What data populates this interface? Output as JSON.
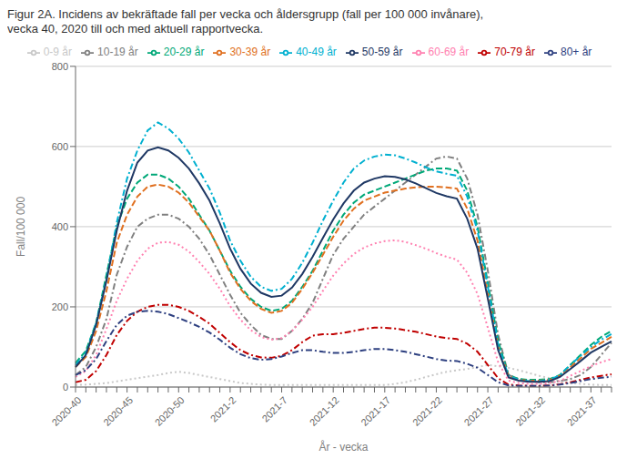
{
  "chart_data": {
    "type": "line",
    "title": "Figur 2A. Incidens av bekräftade fall per vecka och åldersgrupp (fall per 100 000 invånare),",
    "subtitle": "vecka 40, 2020 till och med aktuell rapportvecka.",
    "xlabel": "År - vecka",
    "ylabel": "Fall/100 000",
    "categories": [
      "2020-40",
      null,
      null,
      null,
      null,
      "2020-45",
      null,
      null,
      null,
      null,
      "2020-50",
      null,
      null,
      null,
      null,
      "2021-2",
      null,
      null,
      null,
      null,
      "2021-7",
      null,
      null,
      null,
      null,
      "2021-12",
      null,
      null,
      null,
      null,
      "2021-17",
      null,
      null,
      null,
      null,
      "2021-22",
      null,
      null,
      null,
      null,
      "2021-27",
      null,
      null,
      null,
      null,
      "2021-32",
      null,
      null,
      null,
      null,
      "2021-37",
      null,
      null
    ],
    "series": [
      {
        "name": "0-9 år",
        "color": "#c8c8c8",
        "line_style": "dotted",
        "values": [
          5,
          6,
          8,
          10,
          14,
          18,
          22,
          26,
          30,
          35,
          38,
          35,
          30,
          25,
          20,
          15,
          10,
          8,
          6,
          5,
          5,
          5,
          5,
          5,
          5,
          5,
          5,
          5,
          5,
          5,
          5,
          8,
          12,
          18,
          25,
          32,
          38,
          42,
          45,
          50,
          55,
          52,
          48,
          42,
          35,
          28,
          22,
          15,
          10,
          8,
          6,
          5,
          5
        ]
      },
      {
        "name": "10-19 år",
        "color": "#808080",
        "line_style": "dashdot",
        "values": [
          30,
          50,
          100,
          170,
          280,
          350,
          400,
          420,
          430,
          430,
          420,
          400,
          370,
          330,
          280,
          230,
          185,
          155,
          130,
          120,
          120,
          140,
          170,
          210,
          270,
          330,
          370,
          400,
          430,
          450,
          470,
          490,
          510,
          530,
          550,
          570,
          575,
          570,
          520,
          430,
          290,
          130,
          30,
          20,
          15,
          12,
          12,
          15,
          20,
          30,
          50,
          80,
          110
        ]
      },
      {
        "name": "20-29 år",
        "color": "#00a878",
        "line_style": "dashed",
        "values": [
          60,
          90,
          160,
          280,
          400,
          470,
          510,
          530,
          530,
          520,
          500,
          470,
          430,
          390,
          340,
          290,
          250,
          220,
          200,
          190,
          195,
          215,
          250,
          290,
          340,
          390,
          430,
          460,
          480,
          490,
          500,
          510,
          520,
          530,
          540,
          545,
          545,
          540,
          490,
          400,
          260,
          115,
          30,
          20,
          18,
          18,
          20,
          30,
          55,
          80,
          105,
          125,
          140
        ]
      },
      {
        "name": "30-39 år",
        "color": "#e07020",
        "line_style": "dashed",
        "values": [
          50,
          75,
          140,
          240,
          360,
          430,
          475,
          500,
          505,
          500,
          485,
          460,
          425,
          390,
          340,
          285,
          245,
          215,
          195,
          185,
          190,
          210,
          245,
          285,
          330,
          375,
          415,
          445,
          465,
          475,
          485,
          490,
          495,
          498,
          500,
          500,
          498,
          495,
          445,
          365,
          235,
          100,
          28,
          18,
          16,
          16,
          18,
          28,
          50,
          72,
          95,
          110,
          125
        ]
      },
      {
        "name": "40-49 år",
        "color": "#00b0d0",
        "line_style": "dashdot",
        "values": [
          55,
          85,
          160,
          270,
          410,
          520,
          590,
          640,
          660,
          645,
          620,
          585,
          540,
          495,
          435,
          365,
          315,
          275,
          250,
          240,
          245,
          270,
          310,
          360,
          415,
          465,
          510,
          545,
          565,
          575,
          580,
          578,
          570,
          560,
          548,
          538,
          532,
          527,
          475,
          390,
          250,
          105,
          28,
          18,
          15,
          15,
          18,
          30,
          55,
          78,
          100,
          118,
          132
        ]
      },
      {
        "name": "50-59 år",
        "color": "#1f3864",
        "line_style": "solid",
        "values": [
          50,
          80,
          155,
          265,
          390,
          490,
          560,
          590,
          598,
          590,
          572,
          545,
          508,
          465,
          408,
          345,
          295,
          258,
          235,
          225,
          228,
          248,
          282,
          325,
          372,
          418,
          458,
          490,
          510,
          520,
          526,
          524,
          518,
          508,
          496,
          484,
          476,
          470,
          420,
          345,
          220,
          92,
          24,
          16,
          13,
          13,
          15,
          25,
          45,
          65,
          86,
          100,
          114
        ]
      },
      {
        "name": "60-69 år",
        "color": "#ff80b0",
        "line_style": "dotted",
        "values": [
          25,
          40,
          80,
          145,
          215,
          270,
          315,
          345,
          360,
          362,
          355,
          338,
          312,
          282,
          245,
          202,
          168,
          142,
          125,
          118,
          122,
          140,
          168,
          200,
          240,
          278,
          308,
          332,
          348,
          358,
          364,
          366,
          362,
          354,
          345,
          334,
          325,
          318,
          285,
          232,
          148,
          62,
          16,
          10,
          8,
          8,
          10,
          15,
          28,
          40,
          52,
          62,
          70
        ]
      },
      {
        "name": "70-79 år",
        "color": "#c00000",
        "line_style": "dashdot",
        "values": [
          12,
          18,
          40,
          80,
          130,
          165,
          188,
          200,
          205,
          205,
          200,
          190,
          175,
          158,
          135,
          112,
          92,
          80,
          74,
          73,
          78,
          92,
          112,
          128,
          132,
          132,
          135,
          140,
          145,
          148,
          148,
          146,
          142,
          138,
          132,
          126,
          122,
          120,
          108,
          88,
          55,
          22,
          6,
          4,
          3,
          3,
          4,
          7,
          12,
          18,
          24,
          28,
          32
        ]
      },
      {
        "name": "80+ år",
        "color": "#2e4080",
        "line_style": "dashdot",
        "values": [
          30,
          42,
          70,
          115,
          155,
          178,
          188,
          190,
          188,
          182,
          172,
          162,
          150,
          136,
          118,
          98,
          82,
          72,
          68,
          70,
          76,
          85,
          92,
          92,
          88,
          85,
          85,
          88,
          92,
          95,
          95,
          92,
          88,
          82,
          76,
          70,
          66,
          65,
          58,
          48,
          30,
          12,
          4,
          3,
          3,
          3,
          4,
          6,
          10,
          15,
          20,
          23,
          26
        ]
      }
    ],
    "ylim": [
      0,
      800
    ],
    "yticks": [
      0,
      200,
      400,
      600,
      800
    ],
    "grid": true,
    "legend": "top"
  }
}
